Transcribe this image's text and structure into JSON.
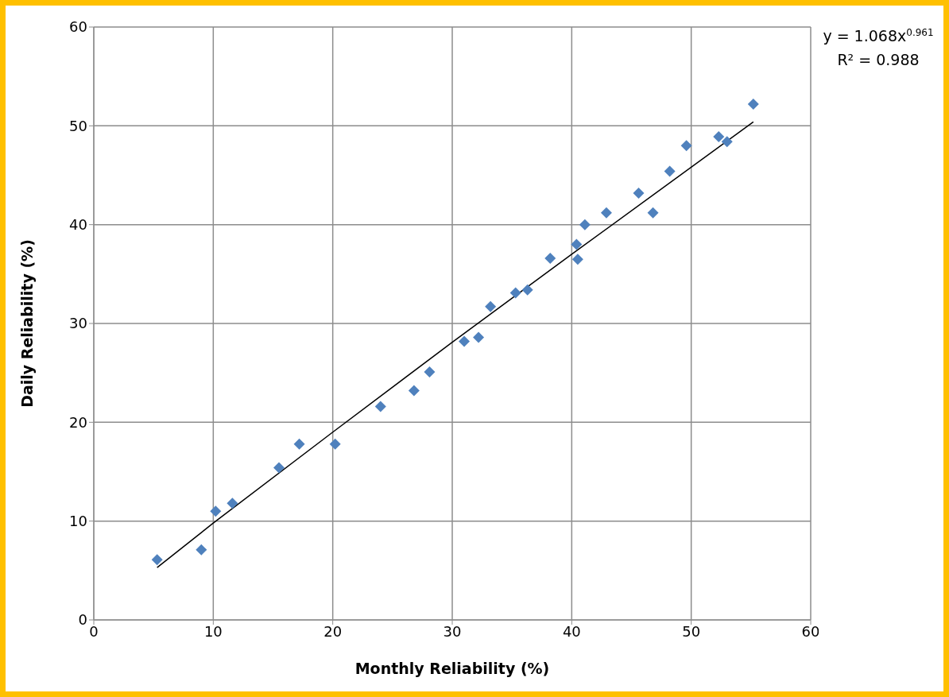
{
  "chart_data": {
    "type": "scatter",
    "xlabel": "Monthly Reliability (%)",
    "ylabel": "Daily Reliability (%)",
    "xlim": [
      0,
      60
    ],
    "xticks": [
      0,
      10,
      20,
      30,
      40,
      50,
      60
    ],
    "ylim": [
      0,
      60
    ],
    "yticks": [
      0,
      10,
      20,
      30,
      40,
      50,
      60
    ],
    "grid": true,
    "series": [
      {
        "marker": "diamond",
        "color": "#4f81bd",
        "x": [
          5.3,
          9.0,
          10.2,
          11.6,
          15.5,
          17.2,
          20.2,
          24.0,
          26.8,
          28.1,
          31.0,
          32.2,
          33.2,
          35.3,
          36.3,
          38.2,
          40.4,
          40.5,
          41.1,
          42.9,
          45.6,
          46.8,
          48.2,
          49.6,
          52.3,
          53.0,
          55.2
        ],
        "values": [
          6.1,
          7.1,
          11.0,
          11.8,
          15.4,
          17.8,
          17.8,
          21.6,
          23.2,
          25.1,
          28.2,
          28.6,
          31.7,
          33.1,
          33.4,
          36.6,
          38.0,
          36.5,
          40.0,
          41.2,
          43.2,
          41.2,
          45.4,
          48.0,
          48.9,
          48.4,
          52.2
        ]
      },
      {
        "type": "line",
        "marker": "none",
        "color": "#000000",
        "x": [
          5.3,
          10,
          20,
          30,
          40,
          55.2
        ],
        "values": [
          5.3,
          9.8,
          19.0,
          28.1,
          37.0,
          50.4
        ]
      }
    ],
    "annotations": [
      "y = 1.068x$^{0.961}$",
      "R² = 0.988"
    ]
  }
}
